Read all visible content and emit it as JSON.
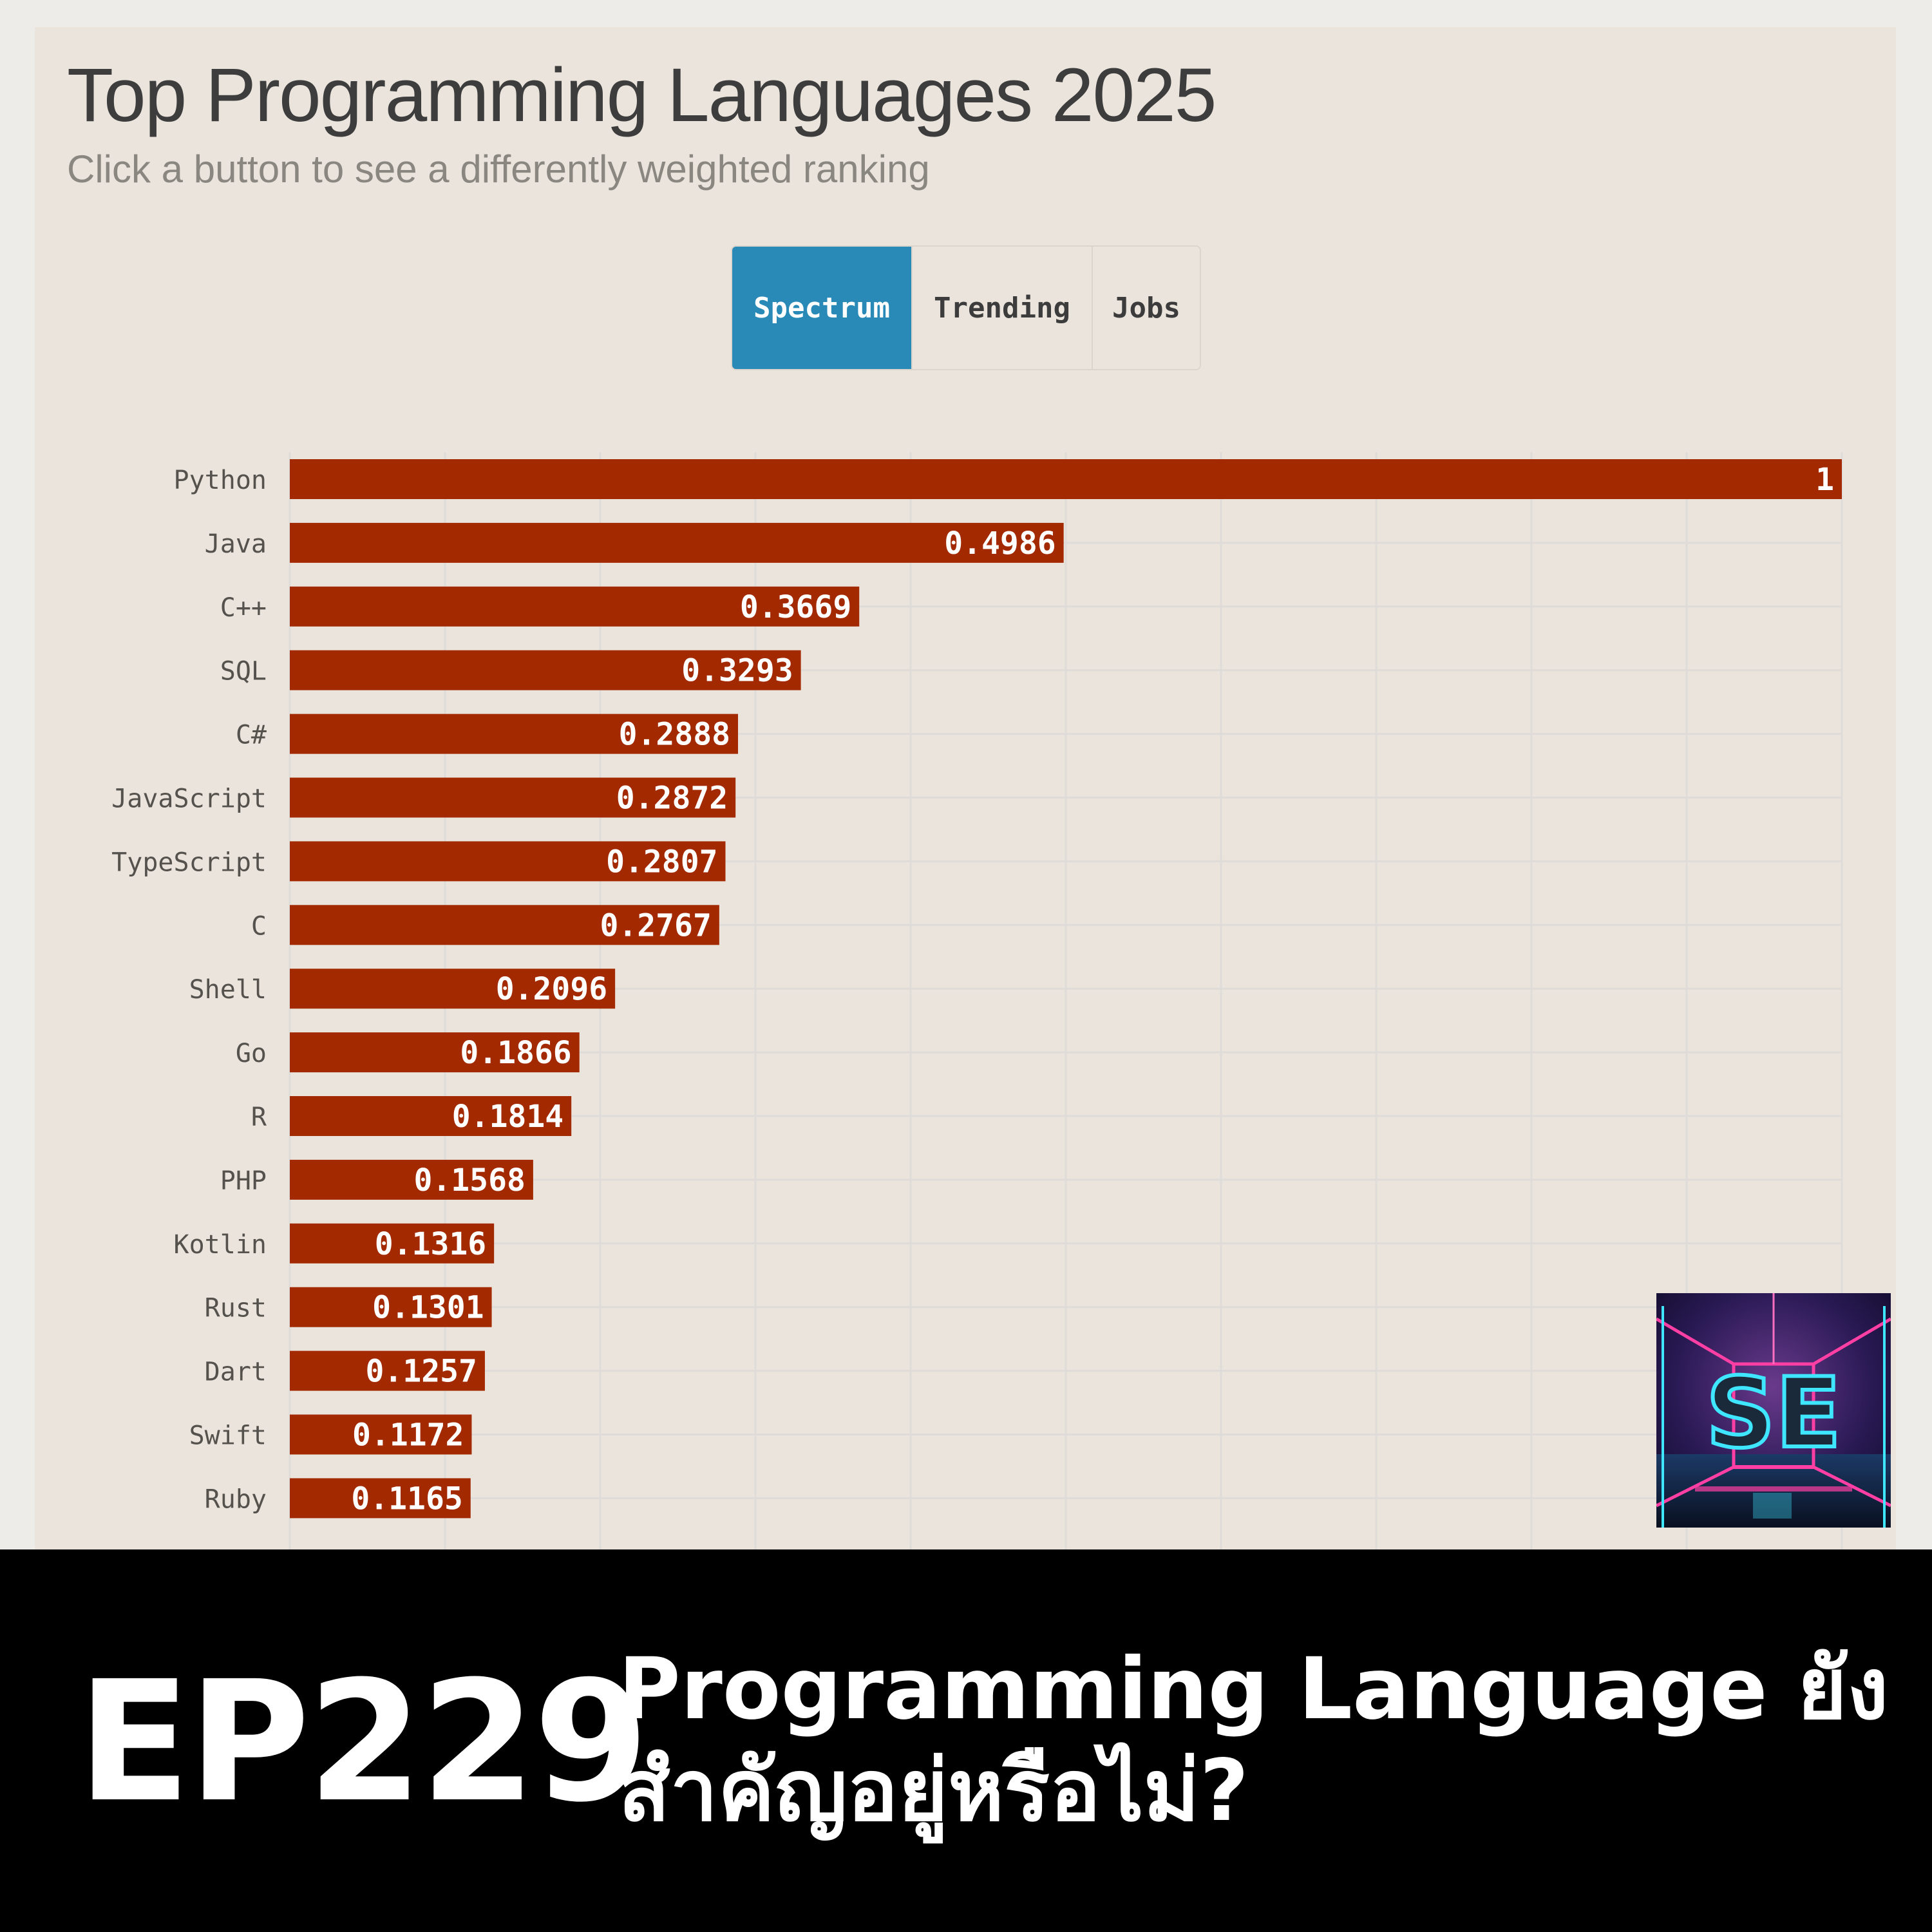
{
  "header": {
    "title": "Top Programming Languages 2025",
    "subtitle": "Click a button to see a differently weighted ranking"
  },
  "buttons": [
    {
      "label": "Spectrum",
      "active": true
    },
    {
      "label": "Trending",
      "active": false
    },
    {
      "label": "Jobs",
      "active": false
    }
  ],
  "chart_data": {
    "type": "bar",
    "orientation": "horizontal",
    "categories": [
      "Python",
      "Java",
      "C++",
      "SQL",
      "C#",
      "JavaScript",
      "TypeScript",
      "C",
      "Shell",
      "Go",
      "R",
      "PHP",
      "Kotlin",
      "Rust",
      "Dart",
      "Swift",
      "Ruby"
    ],
    "values": [
      1,
      0.4986,
      0.3669,
      0.3293,
      0.2888,
      0.2872,
      0.2807,
      0.2767,
      0.2096,
      0.1866,
      0.1814,
      0.1568,
      0.1316,
      0.1301,
      0.1257,
      0.1172,
      0.1165
    ],
    "data_labels": [
      "1",
      "0.4986",
      "0.3669",
      "0.3293",
      "0.2888",
      "0.2872",
      "0.2807",
      "0.2767",
      "0.2096",
      "0.1866",
      "0.1814",
      "0.1568",
      "0.1316",
      "0.1301",
      "0.1257",
      "0.1172",
      "0.1165"
    ],
    "xlim": [
      0,
      1
    ],
    "grid": true,
    "bar_color": "#a32900",
    "label_color": "#ffffff"
  },
  "logo": {
    "text": "SE",
    "icon": "neon-se-logo-icon"
  },
  "banner": {
    "episode": "EP229",
    "title_line1": "Programming Language ยัง",
    "title_line2": "สำคัญอยู่หรือไม่?"
  },
  "colors": {
    "accent": "#2a8ab7",
    "bar": "#a32900",
    "panel_bg": "#ebe4dc",
    "page_bg": "#edece8",
    "banner_bg": "#000000"
  }
}
